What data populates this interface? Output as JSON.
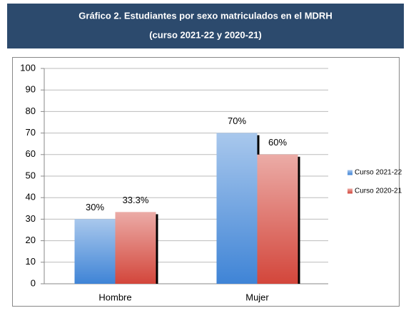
{
  "chart_data": {
    "type": "bar",
    "title": "Gráfico 2. Estudiantes por sexo matriculados en el MDRH",
    "subtitle": "(curso 2021-22 y 2020-21)",
    "categories": [
      "Hombre",
      "Mujer"
    ],
    "series": [
      {
        "name": "Curso 2021-22",
        "color": "#3f84d6",
        "values": [
          30,
          70
        ],
        "value_labels": [
          "30%",
          "70%"
        ]
      },
      {
        "name": "Curso 2020-21",
        "color": "#d3463b",
        "values": [
          33.3,
          60
        ],
        "value_labels": [
          "33.3%",
          "60%"
        ]
      }
    ],
    "ylim": [
      0,
      100
    ],
    "yticks": [
      0,
      10,
      20,
      30,
      40,
      50,
      60,
      70,
      80,
      90,
      100
    ],
    "grid": true,
    "legend": "right"
  }
}
